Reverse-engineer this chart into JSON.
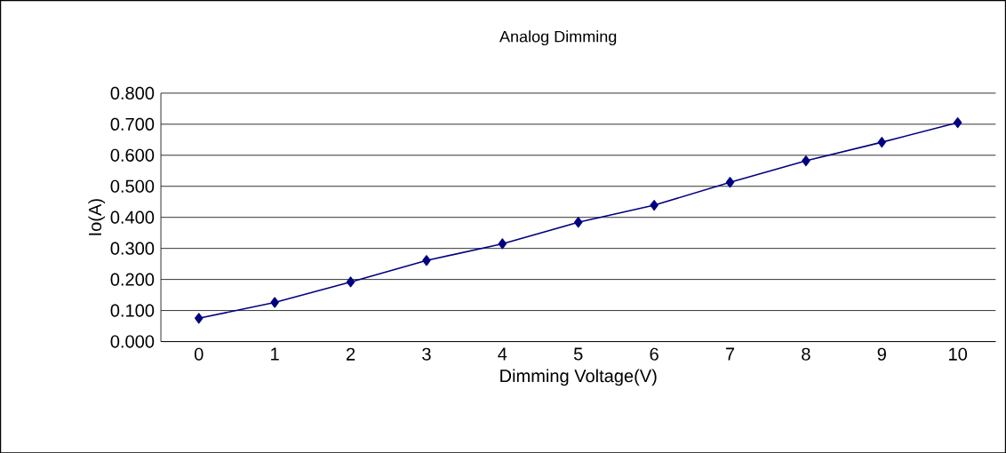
{
  "chart_data": {
    "type": "line",
    "title": "Analog Dimming",
    "xlabel": "Dimming Voltage(V)",
    "ylabel": "Io(A)",
    "categories": [
      "0",
      "1",
      "2",
      "3",
      "4",
      "5",
      "6",
      "7",
      "8",
      "9",
      "10"
    ],
    "series": [
      {
        "color": "#000080",
        "values": [
          0.075,
          0.126,
          0.192,
          0.261,
          0.315,
          0.384,
          0.439,
          0.513,
          0.582,
          0.642,
          0.705
        ]
      }
    ],
    "ylim": [
      0,
      0.8
    ],
    "yticks": [
      {
        "value": 0,
        "label": "0.000"
      },
      {
        "value": 0.1,
        "label": "0.100"
      },
      {
        "value": 0.2,
        "label": "0.200"
      },
      {
        "value": 0.3,
        "label": "0.300"
      },
      {
        "value": 0.4,
        "label": "0.400"
      },
      {
        "value": 0.5,
        "label": "0.500"
      },
      {
        "value": 0.6,
        "label": "0.600"
      },
      {
        "value": 0.7,
        "label": "0.700"
      },
      {
        "value": 0.8,
        "label": "0.800"
      }
    ],
    "grid": "y",
    "marker": "diamond",
    "line_style": "solid"
  }
}
